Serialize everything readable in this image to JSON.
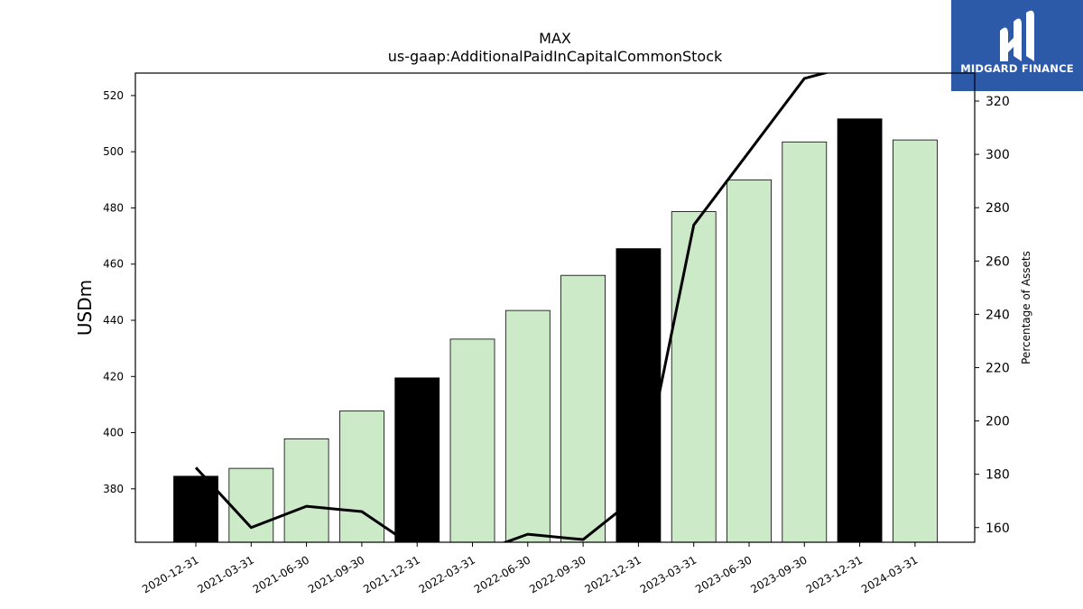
{
  "brand": {
    "name": "MIDGARD FINANCE",
    "logo_icon": "midgard-m-icon",
    "background_color": "#2d5aa8"
  },
  "chart_data": {
    "type": "bar",
    "title": "MAX",
    "subtitle": "us-gaap:AdditionalPaidInCapitalCommonStock",
    "ylabel": "USDm",
    "y2label": "Percentage of Assets",
    "categories": [
      "2020-12-31",
      "2021-03-31",
      "2021-06-30",
      "2021-09-30",
      "2021-12-31",
      "2022-03-31",
      "2022-06-30",
      "2022-09-30",
      "2022-12-31",
      "2023-03-31",
      "2023-06-30",
      "2023-09-30",
      "2023-12-31",
      "2024-03-31"
    ],
    "values": [
      384.5,
      387.3,
      397.8,
      407.7,
      419.5,
      433.3,
      443.5,
      456.0,
      465.5,
      478.7,
      490.0,
      503.5,
      511.7,
      504.2
    ],
    "highlight": [
      true,
      false,
      false,
      false,
      true,
      false,
      false,
      false,
      true,
      false,
      false,
      false,
      true,
      false
    ],
    "bar_colors": {
      "highlight": "#000000",
      "normal": "#cdeac8"
    },
    "ylim": [
      361,
      528
    ],
    "yticks": [
      380,
      400,
      420,
      440,
      460,
      480,
      500,
      520
    ],
    "line_series": {
      "name": "Percentage of Assets",
      "values": [
        182.5,
        160.0,
        168.0,
        166.0,
        152.0,
        150.0,
        157.5,
        155.5,
        172.0,
        273.5,
        301.0,
        328.5,
        334.0,
        337.0
      ]
    },
    "y2lim": [
      154.5,
      330.5
    ],
    "y2ticks": [
      160,
      180,
      200,
      220,
      240,
      260,
      280,
      300,
      320
    ],
    "grid": false,
    "legend": "none"
  }
}
